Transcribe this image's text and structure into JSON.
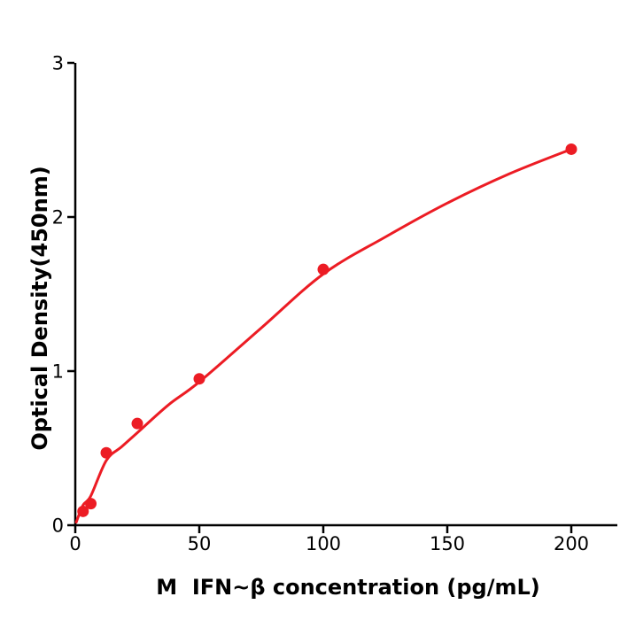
{
  "figure": {
    "background_color": "#ffffff",
    "axis_color": "#000000",
    "accent_color": "#ec1c24"
  },
  "chart_data": {
    "type": "scatter",
    "title": "",
    "xlabel": "M  IFN~β concentration (pg/mL)",
    "ylabel": "Optical Density(450nm)",
    "xlim": [
      0,
      218
    ],
    "ylim": [
      0,
      3
    ],
    "x_ticks": [
      0,
      50,
      100,
      150,
      200
    ],
    "y_ticks": [
      0,
      1,
      2,
      3
    ],
    "grid": false,
    "legend_position": "none",
    "series": [
      {
        "role": "standard-points",
        "type": "scatter",
        "color": "#ec1c24",
        "marker": "circle",
        "x": [
          3.125,
          6.25,
          12.5,
          25,
          50,
          100,
          200
        ],
        "y": [
          0.09,
          0.14,
          0.47,
          0.66,
          0.95,
          1.66,
          2.44
        ]
      },
      {
        "role": "fit-curve",
        "type": "line",
        "color": "#ec1c24",
        "x": [
          0.4,
          3.125,
          6.25,
          12.5,
          18.75,
          25,
          37.5,
          50,
          75,
          100,
          125,
          150,
          175,
          200
        ],
        "y": [
          0.02,
          0.13,
          0.19,
          0.42,
          0.51,
          0.6,
          0.78,
          0.93,
          1.28,
          1.63,
          1.87,
          2.09,
          2.28,
          2.44
        ]
      }
    ]
  }
}
